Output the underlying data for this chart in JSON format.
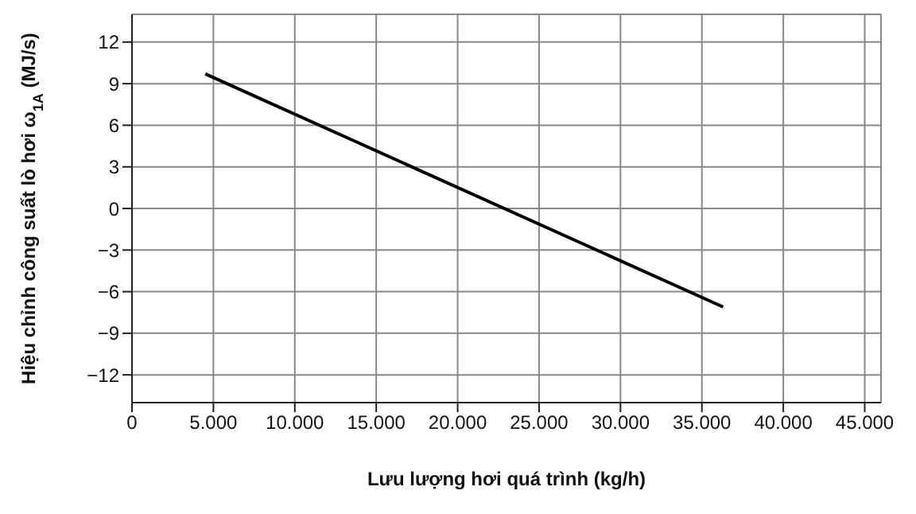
{
  "chart_data": {
    "type": "line",
    "xlabel": "Lưu lượng hơi quá trình (kg/h)",
    "ylabel": "Hiệu chỉnh công suất lò hơi ω$_{1A}$ (MJ/s)",
    "x": [
      4500,
      36300
    ],
    "series": [
      {
        "color": "#000000",
        "values": [
          9.7,
          -7.1
        ]
      }
    ],
    "xlim": [
      0,
      46000
    ],
    "ylim": [
      -14,
      14
    ],
    "xticks": [
      0,
      {
        "value": 5000,
        "label": "5.000"
      },
      {
        "value": 10000,
        "label": "10.000"
      },
      {
        "value": 15000,
        "label": "15.000"
      },
      {
        "value": 20000,
        "label": "20.000"
      },
      {
        "value": 25000,
        "label": "25.000"
      },
      {
        "value": 30000,
        "label": "30.000"
      },
      {
        "value": 35000,
        "label": "35.000"
      },
      {
        "value": 40000,
        "label": "40.000"
      },
      {
        "value": 45000,
        "label": "45.000"
      }
    ],
    "yticks": [
      -12,
      -9,
      -6,
      -3,
      0,
      3,
      6,
      9,
      12
    ],
    "grid": true,
    "marker": "none",
    "line_style": "solid"
  }
}
